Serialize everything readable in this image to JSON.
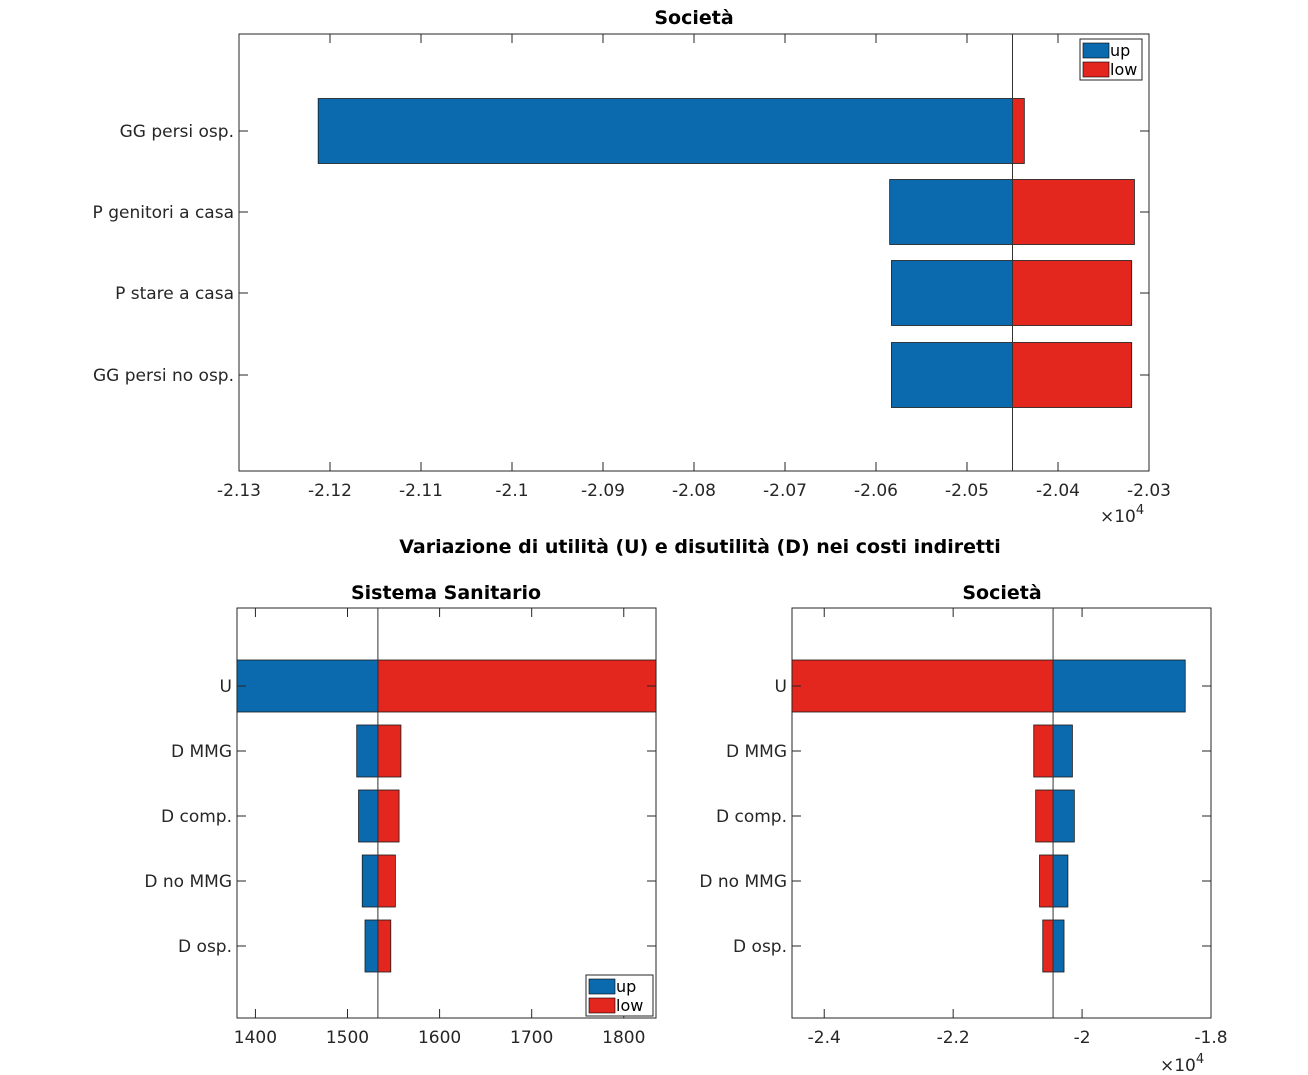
{
  "colors": {
    "up": "#0b6aad",
    "low": "#e3261e"
  },
  "suptitle": "Variazione di utilità (U) e disutilità (D) nei costi indiretti",
  "legend": {
    "up": "up",
    "low": "low"
  },
  "exponent": {
    "base": "×10",
    "power": "4"
  },
  "chart_data": [
    {
      "type": "bar",
      "orientation": "horizontal",
      "title": "Società",
      "xlabel": "",
      "ylabel": "",
      "categories": [
        "GG persi osp.",
        "P genitori a casa",
        "P stare a casa",
        "GG persi no osp."
      ],
      "baseline": -20450,
      "xlim": [
        -21300,
        -20300
      ],
      "xticks": [
        -21300,
        -21200,
        -21100,
        -21000,
        -20900,
        -20800,
        -20700,
        -20600,
        -20500,
        -20400,
        -20300
      ],
      "tick_labels": [
        "-2.13",
        "-2.12",
        "-2.11",
        "-2.1",
        "-2.09",
        "-2.08",
        "-2.07",
        "-2.06",
        "-2.05",
        "-2.04",
        "-2.03"
      ],
      "series": [
        {
          "name": "up",
          "values": [
            -21213,
            -20585,
            -20583,
            -20583
          ]
        },
        {
          "name": "low",
          "values": [
            -20437,
            -20316,
            -20319,
            -20319
          ]
        }
      ],
      "legend": "top-right",
      "scale_exponent": 4
    },
    {
      "type": "bar",
      "orientation": "horizontal",
      "title": "Sistema Sanitario",
      "xlabel": "",
      "ylabel": "",
      "categories": [
        "U",
        "D MMG",
        "D comp.",
        "D no MMG",
        "D osp."
      ],
      "baseline": 1533,
      "xlim": [
        1380,
        1835
      ],
      "xticks": [
        1400,
        1500,
        1600,
        1700,
        1800
      ],
      "tick_labels": [
        "1400",
        "1500",
        "1600",
        "1700",
        "1800"
      ],
      "series": [
        {
          "name": "up",
          "values": [
            1380,
            1510,
            1512,
            1516,
            1519
          ]
        },
        {
          "name": "low",
          "values": [
            1835,
            1558,
            1556,
            1552,
            1547
          ]
        }
      ],
      "legend": "bottom-right"
    },
    {
      "type": "bar",
      "orientation": "horizontal",
      "title": "Società",
      "xlabel": "",
      "ylabel": "",
      "categories": [
        "U",
        "D MMG",
        "D comp.",
        "D no MMG",
        "D osp."
      ],
      "baseline": -20450,
      "xlim": [
        -24500,
        -18000
      ],
      "xticks": [
        -24000,
        -22000,
        -20000,
        -18000
      ],
      "tick_labels": [
        "-2.4",
        "-2.2",
        "-2",
        "-1.8"
      ],
      "series": [
        {
          "name": "up",
          "values": [
            -18400,
            -20150,
            -20120,
            -20220,
            -20280
          ]
        },
        {
          "name": "low",
          "values": [
            -24500,
            -20750,
            -20720,
            -20660,
            -20610
          ]
        }
      ],
      "scale_exponent": 4
    }
  ]
}
